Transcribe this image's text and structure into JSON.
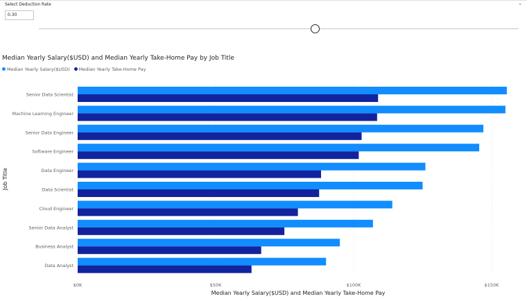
{
  "slicer": {
    "title": "Select Deduction Rate",
    "value": "0.30"
  },
  "colors": {
    "salary": "#118dff",
    "takehome": "#12239e",
    "gridline": "#e6e6e6",
    "axis_text": "#605e5c"
  },
  "chart_data": {
    "type": "bar",
    "orientation": "horizontal",
    "title": "Median Yearly Salary($USD) and Median Yearly Take-Home Pay by Job Title",
    "xlabel": "Median Yearly Salary($USD) and Median Yearly Take-Home Pay",
    "ylabel": "Job Title",
    "xlim": [
      0,
      160000
    ],
    "x_ticks": [
      0,
      50000,
      100000,
      150000
    ],
    "x_tick_labels": [
      "$0K",
      "$50K",
      "$100K",
      "$150K"
    ],
    "grid": true,
    "legend_position": "top-left",
    "categories": [
      "Senior Data Scientist",
      "Machine Learning Engineer",
      "Senior Data Engineer",
      "Software Engineer",
      "Data Engineer",
      "Data Scientist",
      "Cloud Engineer",
      "Senior Data Analyst",
      "Business Analyst",
      "Data Analyst"
    ],
    "series": [
      {
        "name": "Median Yearly Salary($USD)",
        "values": [
          155500,
          155000,
          147000,
          145500,
          126000,
          125000,
          114000,
          107000,
          95000,
          90000
        ]
      },
      {
        "name": "Median Yearly Take-Home Pay",
        "values": [
          108850,
          108500,
          102900,
          101850,
          88200,
          87500,
          79800,
          74900,
          66500,
          63000
        ]
      }
    ]
  }
}
